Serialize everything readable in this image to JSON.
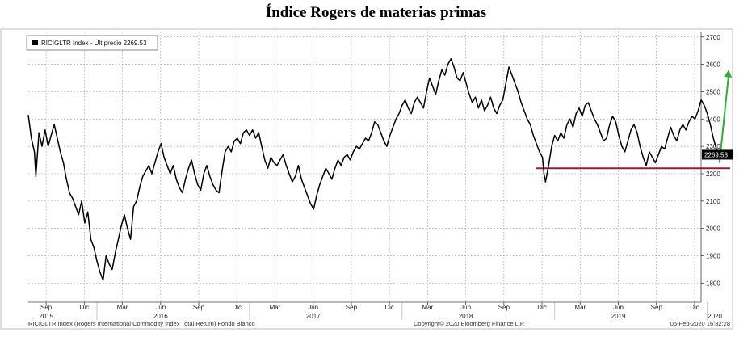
{
  "title": "Índice Rogers de materias primas",
  "chart_data": {
    "type": "line",
    "title": "Índice Rogers de materias primas",
    "series_name": "RICIGLTR Index - Últ precio 2269.53",
    "last_value_label": "2269.53",
    "last_value": 2269.53,
    "ylim": [
      1730,
      2720
    ],
    "yticks": [
      1800,
      1900,
      2000,
      2100,
      2200,
      2300,
      2400,
      2500,
      2600,
      2700
    ],
    "x_range": [
      2015.55,
      2020.15
    ],
    "month_ticks": [
      {
        "label": "Sep",
        "t": 2015.667
      },
      {
        "label": "Dic",
        "t": 2015.917
      },
      {
        "label": "Mar",
        "t": 2016.167
      },
      {
        "label": "Jun",
        "t": 2016.417
      },
      {
        "label": "Sep",
        "t": 2016.667
      },
      {
        "label": "Dic",
        "t": 2016.917
      },
      {
        "label": "Mar",
        "t": 2017.167
      },
      {
        "label": "Jun",
        "t": 2017.417
      },
      {
        "label": "Sep",
        "t": 2017.667
      },
      {
        "label": "Dic",
        "t": 2017.917
      },
      {
        "label": "Mar",
        "t": 2018.167
      },
      {
        "label": "Jun",
        "t": 2018.417
      },
      {
        "label": "Sep",
        "t": 2018.667
      },
      {
        "label": "Dic",
        "t": 2018.917
      },
      {
        "label": "Mar",
        "t": 2019.167
      },
      {
        "label": "Jun",
        "t": 2019.417
      },
      {
        "label": "Sep",
        "t": 2019.667
      },
      {
        "label": "Dic",
        "t": 2019.917
      }
    ],
    "year_ticks": [
      {
        "label": "2015",
        "t": 2015.667
      },
      {
        "label": "2016",
        "t": 2016.417
      },
      {
        "label": "2017",
        "t": 2017.417
      },
      {
        "label": "2018",
        "t": 2018.417
      },
      {
        "label": "2019",
        "t": 2019.417
      },
      {
        "label": "2020",
        "t": 2020.05
      }
    ],
    "points": [
      [
        2015.55,
        2415
      ],
      [
        2015.57,
        2330
      ],
      [
        2015.59,
        2280
      ],
      [
        2015.6,
        2190
      ],
      [
        2015.62,
        2350
      ],
      [
        2015.64,
        2300
      ],
      [
        2015.66,
        2360
      ],
      [
        2015.68,
        2300
      ],
      [
        2015.7,
        2340
      ],
      [
        2015.72,
        2380
      ],
      [
        2015.74,
        2330
      ],
      [
        2015.76,
        2280
      ],
      [
        2015.78,
        2240
      ],
      [
        2015.8,
        2180
      ],
      [
        2015.82,
        2130
      ],
      [
        2015.84,
        2110
      ],
      [
        2015.86,
        2080
      ],
      [
        2015.88,
        2050
      ],
      [
        2015.9,
        2100
      ],
      [
        2015.92,
        2020
      ],
      [
        2015.94,
        2060
      ],
      [
        2015.96,
        1960
      ],
      [
        2015.98,
        1930
      ],
      [
        2016.0,
        1880
      ],
      [
        2016.02,
        1840
      ],
      [
        2016.04,
        1810
      ],
      [
        2016.06,
        1900
      ],
      [
        2016.08,
        1870
      ],
      [
        2016.1,
        1850
      ],
      [
        2016.12,
        1910
      ],
      [
        2016.14,
        1960
      ],
      [
        2016.16,
        2010
      ],
      [
        2016.18,
        2050
      ],
      [
        2016.2,
        2000
      ],
      [
        2016.22,
        1960
      ],
      [
        2016.24,
        2080
      ],
      [
        2016.26,
        2100
      ],
      [
        2016.28,
        2150
      ],
      [
        2016.3,
        2190
      ],
      [
        2016.32,
        2210
      ],
      [
        2016.34,
        2230
      ],
      [
        2016.36,
        2200
      ],
      [
        2016.38,
        2240
      ],
      [
        2016.4,
        2280
      ],
      [
        2016.42,
        2310
      ],
      [
        2016.44,
        2260
      ],
      [
        2016.46,
        2230
      ],
      [
        2016.48,
        2200
      ],
      [
        2016.5,
        2230
      ],
      [
        2016.52,
        2180
      ],
      [
        2016.54,
        2150
      ],
      [
        2016.56,
        2130
      ],
      [
        2016.58,
        2180
      ],
      [
        2016.6,
        2220
      ],
      [
        2016.62,
        2250
      ],
      [
        2016.64,
        2200
      ],
      [
        2016.66,
        2160
      ],
      [
        2016.68,
        2140
      ],
      [
        2016.7,
        2200
      ],
      [
        2016.72,
        2230
      ],
      [
        2016.74,
        2190
      ],
      [
        2016.76,
        2160
      ],
      [
        2016.78,
        2140
      ],
      [
        2016.8,
        2130
      ],
      [
        2016.82,
        2210
      ],
      [
        2016.84,
        2280
      ],
      [
        2016.86,
        2300
      ],
      [
        2016.88,
        2280
      ],
      [
        2016.9,
        2320
      ],
      [
        2016.92,
        2330
      ],
      [
        2016.94,
        2310
      ],
      [
        2016.96,
        2350
      ],
      [
        2016.98,
        2360
      ],
      [
        2017.0,
        2340
      ],
      [
        2017.02,
        2360
      ],
      [
        2017.04,
        2330
      ],
      [
        2017.06,
        2350
      ],
      [
        2017.08,
        2300
      ],
      [
        2017.1,
        2250
      ],
      [
        2017.12,
        2220
      ],
      [
        2017.14,
        2260
      ],
      [
        2017.16,
        2240
      ],
      [
        2017.18,
        2230
      ],
      [
        2017.2,
        2250
      ],
      [
        2017.22,
        2270
      ],
      [
        2017.24,
        2230
      ],
      [
        2017.26,
        2200
      ],
      [
        2017.28,
        2170
      ],
      [
        2017.3,
        2190
      ],
      [
        2017.32,
        2230
      ],
      [
        2017.34,
        2180
      ],
      [
        2017.36,
        2150
      ],
      [
        2017.38,
        2120
      ],
      [
        2017.4,
        2090
      ],
      [
        2017.42,
        2070
      ],
      [
        2017.44,
        2120
      ],
      [
        2017.46,
        2160
      ],
      [
        2017.48,
        2190
      ],
      [
        2017.5,
        2220
      ],
      [
        2017.52,
        2200
      ],
      [
        2017.54,
        2180
      ],
      [
        2017.56,
        2220
      ],
      [
        2017.58,
        2250
      ],
      [
        2017.6,
        2230
      ],
      [
        2017.62,
        2260
      ],
      [
        2017.64,
        2270
      ],
      [
        2017.66,
        2250
      ],
      [
        2017.68,
        2280
      ],
      [
        2017.7,
        2300
      ],
      [
        2017.72,
        2290
      ],
      [
        2017.74,
        2310
      ],
      [
        2017.76,
        2330
      ],
      [
        2017.78,
        2320
      ],
      [
        2017.8,
        2350
      ],
      [
        2017.82,
        2390
      ],
      [
        2017.84,
        2380
      ],
      [
        2017.86,
        2350
      ],
      [
        2017.88,
        2320
      ],
      [
        2017.9,
        2300
      ],
      [
        2017.92,
        2340
      ],
      [
        2017.94,
        2370
      ],
      [
        2017.96,
        2400
      ],
      [
        2017.98,
        2420
      ],
      [
        2018.0,
        2450
      ],
      [
        2018.02,
        2470
      ],
      [
        2018.04,
        2440
      ],
      [
        2018.06,
        2420
      ],
      [
        2018.08,
        2460
      ],
      [
        2018.1,
        2480
      ],
      [
        2018.12,
        2460
      ],
      [
        2018.14,
        2440
      ],
      [
        2018.16,
        2500
      ],
      [
        2018.18,
        2550
      ],
      [
        2018.2,
        2520
      ],
      [
        2018.22,
        2490
      ],
      [
        2018.24,
        2540
      ],
      [
        2018.26,
        2580
      ],
      [
        2018.28,
        2560
      ],
      [
        2018.3,
        2600
      ],
      [
        2018.32,
        2620
      ],
      [
        2018.34,
        2590
      ],
      [
        2018.36,
        2550
      ],
      [
        2018.38,
        2540
      ],
      [
        2018.4,
        2570
      ],
      [
        2018.42,
        2530
      ],
      [
        2018.44,
        2490
      ],
      [
        2018.46,
        2460
      ],
      [
        2018.48,
        2480
      ],
      [
        2018.5,
        2440
      ],
      [
        2018.52,
        2470
      ],
      [
        2018.54,
        2430
      ],
      [
        2018.56,
        2450
      ],
      [
        2018.58,
        2480
      ],
      [
        2018.6,
        2440
      ],
      [
        2018.62,
        2420
      ],
      [
        2018.64,
        2450
      ],
      [
        2018.66,
        2470
      ],
      [
        2018.68,
        2530
      ],
      [
        2018.7,
        2590
      ],
      [
        2018.72,
        2560
      ],
      [
        2018.74,
        2530
      ],
      [
        2018.76,
        2500
      ],
      [
        2018.78,
        2460
      ],
      [
        2018.8,
        2430
      ],
      [
        2018.82,
        2400
      ],
      [
        2018.84,
        2380
      ],
      [
        2018.86,
        2340
      ],
      [
        2018.88,
        2310
      ],
      [
        2018.9,
        2280
      ],
      [
        2018.92,
        2260
      ],
      [
        2018.93,
        2200
      ],
      [
        2018.94,
        2170
      ],
      [
        2018.96,
        2230
      ],
      [
        2018.98,
        2300
      ],
      [
        2019.0,
        2340
      ],
      [
        2019.02,
        2320
      ],
      [
        2019.04,
        2350
      ],
      [
        2019.06,
        2330
      ],
      [
        2019.08,
        2380
      ],
      [
        2019.1,
        2400
      ],
      [
        2019.12,
        2370
      ],
      [
        2019.14,
        2420
      ],
      [
        2019.16,
        2440
      ],
      [
        2019.18,
        2410
      ],
      [
        2019.2,
        2450
      ],
      [
        2019.22,
        2460
      ],
      [
        2019.24,
        2430
      ],
      [
        2019.26,
        2400
      ],
      [
        2019.28,
        2380
      ],
      [
        2019.3,
        2350
      ],
      [
        2019.32,
        2320
      ],
      [
        2019.34,
        2330
      ],
      [
        2019.36,
        2380
      ],
      [
        2019.38,
        2410
      ],
      [
        2019.4,
        2390
      ],
      [
        2019.42,
        2340
      ],
      [
        2019.44,
        2300
      ],
      [
        2019.46,
        2280
      ],
      [
        2019.48,
        2320
      ],
      [
        2019.5,
        2360
      ],
      [
        2019.52,
        2380
      ],
      [
        2019.54,
        2350
      ],
      [
        2019.56,
        2300
      ],
      [
        2019.58,
        2260
      ],
      [
        2019.6,
        2230
      ],
      [
        2019.62,
        2280
      ],
      [
        2019.64,
        2260
      ],
      [
        2019.66,
        2240
      ],
      [
        2019.68,
        2270
      ],
      [
        2019.7,
        2300
      ],
      [
        2019.72,
        2290
      ],
      [
        2019.74,
        2330
      ],
      [
        2019.76,
        2370
      ],
      [
        2019.78,
        2340
      ],
      [
        2019.8,
        2320
      ],
      [
        2019.82,
        2360
      ],
      [
        2019.84,
        2380
      ],
      [
        2019.86,
        2360
      ],
      [
        2019.88,
        2390
      ],
      [
        2019.9,
        2410
      ],
      [
        2019.92,
        2400
      ],
      [
        2019.94,
        2430
      ],
      [
        2019.96,
        2470
      ],
      [
        2019.98,
        2450
      ],
      [
        2020.0,
        2420
      ],
      [
        2020.02,
        2380
      ],
      [
        2020.04,
        2330
      ],
      [
        2020.06,
        2290
      ],
      [
        2020.08,
        2269.53
      ]
    ],
    "support_line": {
      "value": 2220,
      "t_start": 2018.88,
      "t_end": 2020.15,
      "color": "#a0182f"
    },
    "trend_arrow": {
      "from": [
        2020.08,
        2240
      ],
      "to": [
        2020.14,
        2580
      ],
      "color": "#2fae2f"
    },
    "colors": {
      "series": "#000000",
      "grid": "#9a9a9a",
      "axis": "#444444",
      "label_bg": "#000000"
    }
  },
  "footer": {
    "left": "RICIGLTR Index (Rogers International Commodity Index Total Return) Fondo Blanco",
    "center": "Copyright© 2020 Bloomberg Finance L.P.",
    "right": "05-Feb-2020 16:32:28"
  }
}
